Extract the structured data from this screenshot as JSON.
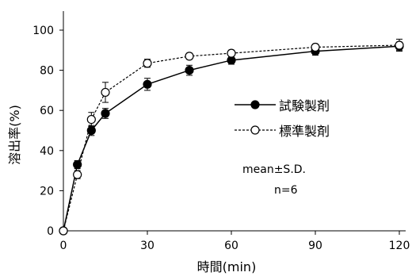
{
  "chart_data": {
    "type": "line",
    "xlabel": "時間(min)",
    "ylabel": "溶出率(%)",
    "xlim": [
      0,
      120
    ],
    "ylim": [
      0,
      100
    ],
    "x_ticks": [
      0,
      30,
      60,
      90,
      120
    ],
    "y_ticks": [
      0,
      20,
      40,
      60,
      80,
      100
    ],
    "x_tick_labels": [
      "0",
      "30",
      "60",
      "90",
      "120"
    ],
    "y_tick_labels": [
      "0",
      "20",
      "40",
      "60",
      "80",
      "100"
    ],
    "grid": false,
    "legend_position": "right",
    "annotation_lines": [
      "mean±S.D.",
      "n=6"
    ],
    "series": [
      {
        "name": "試験製剤",
        "marker": "filled-circle",
        "line_style": "solid",
        "color": "#000000",
        "x": [
          0,
          5,
          10,
          15,
          30,
          45,
          60,
          90,
          120
        ],
        "y": [
          0,
          33,
          50,
          58.5,
          73,
          80,
          85,
          89.5,
          92
        ],
        "sd": [
          0,
          2,
          2.5,
          2.5,
          3,
          2.5,
          2,
          2,
          2
        ]
      },
      {
        "name": "標準製剤",
        "marker": "open-circle",
        "line_style": "dashed",
        "color": "#000000",
        "x": [
          0,
          5,
          10,
          15,
          30,
          45,
          60,
          90,
          120
        ],
        "y": [
          0,
          28,
          55.5,
          69,
          83.5,
          87,
          88.5,
          91.5,
          92.5
        ],
        "sd": [
          0,
          2,
          3.5,
          5,
          2,
          1.5,
          1.5,
          1.5,
          3
        ]
      }
    ]
  }
}
